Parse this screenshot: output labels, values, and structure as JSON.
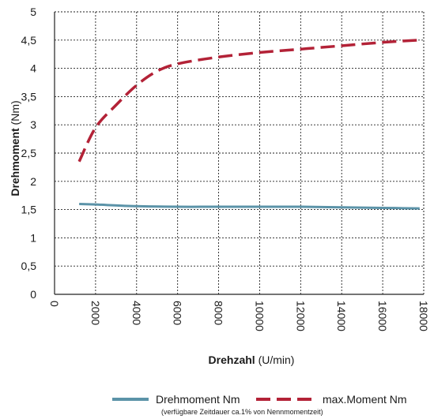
{
  "chart_data": {
    "type": "line",
    "xlabel": {
      "main": "Drehzahl",
      "unit": "(U/min)"
    },
    "ylabel": {
      "main": "Drehmoment",
      "unit": "(Nm)"
    },
    "xlim": [
      0,
      18000
    ],
    "ylim": [
      0,
      5
    ],
    "xticks": [
      {
        "value": 0,
        "label": "0"
      },
      {
        "value": 2000,
        "label": "2000"
      },
      {
        "value": 4000,
        "label": "4000"
      },
      {
        "value": 6000,
        "label": "6000"
      },
      {
        "value": 8000,
        "label": "8000"
      },
      {
        "value": 10000,
        "label": "10000"
      },
      {
        "value": 12000,
        "label": "12000"
      },
      {
        "value": 14000,
        "label": "14000"
      },
      {
        "value": 16000,
        "label": "16000"
      },
      {
        "value": 18000,
        "label": "18000"
      }
    ],
    "yticks": [
      {
        "value": 0,
        "label": "0"
      },
      {
        "value": 0.5,
        "label": "0,5"
      },
      {
        "value": 1,
        "label": "1"
      },
      {
        "value": 1.5,
        "label": "1,5"
      },
      {
        "value": 2,
        "label": "2"
      },
      {
        "value": 2.5,
        "label": "2,5"
      },
      {
        "value": 3,
        "label": "3"
      },
      {
        "value": 3.5,
        "label": "3,5"
      },
      {
        "value": 4,
        "label": "4"
      },
      {
        "value": 4.5,
        "label": "4,5"
      },
      {
        "value": 5,
        "label": "5"
      }
    ],
    "grid": true,
    "legend_position": "bottom",
    "series": [
      {
        "name": "Drehmoment Nm",
        "color": "#5b93a8",
        "dash": "solid",
        "x": [
          1200,
          2000,
          4000,
          6000,
          8000,
          10000,
          12000,
          14000,
          16000,
          17800
        ],
        "y": [
          1.6,
          1.59,
          1.56,
          1.55,
          1.55,
          1.55,
          1.55,
          1.54,
          1.53,
          1.52
        ]
      },
      {
        "name": "max.Moment Nm",
        "color": "#b32237",
        "dash": "dashed",
        "x": [
          1200,
          2000,
          3000,
          4000,
          5000,
          6000,
          8000,
          10000,
          12000,
          14000,
          16000,
          17800
        ],
        "y": [
          2.35,
          2.95,
          3.35,
          3.7,
          3.95,
          4.08,
          4.2,
          4.28,
          4.34,
          4.4,
          4.46,
          4.5
        ]
      }
    ],
    "note": "(verfügbare Zeitdauer ca.1% von Nennmomentzeit)"
  }
}
